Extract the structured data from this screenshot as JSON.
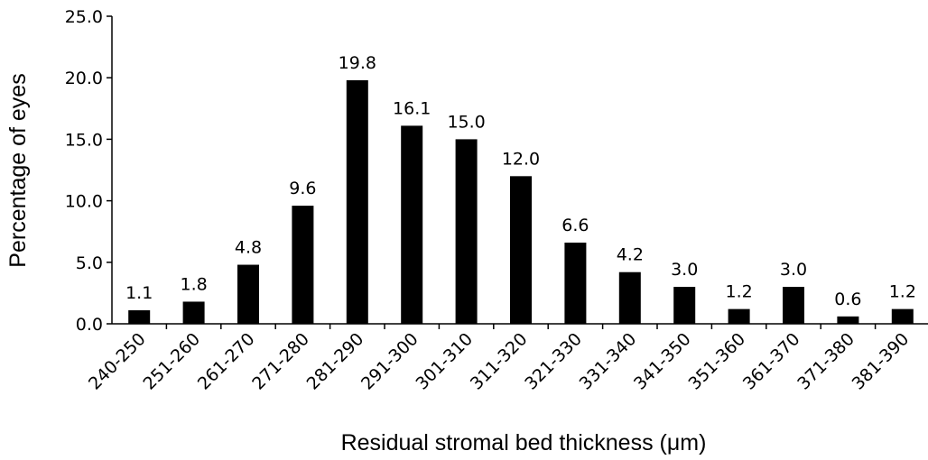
{
  "chart_data": {
    "type": "bar",
    "title": "",
    "xlabel": "Residual stromal bed thickness (μm)",
    "ylabel": "Percentage of eyes",
    "ylim": [
      0,
      25
    ],
    "yticks": [
      "0.0",
      "5.0",
      "10.0",
      "15.0",
      "20.0",
      "25.0"
    ],
    "categories": [
      "240-250",
      "251-260",
      "261-270",
      "271-280",
      "281-290",
      "291-300",
      "301-310",
      "311-320",
      "321-330",
      "331-340",
      "341-350",
      "351-360",
      "361-370",
      "371-380",
      "381-390"
    ],
    "values": [
      1.1,
      1.8,
      4.8,
      9.6,
      19.8,
      16.1,
      15.0,
      12.0,
      6.6,
      4.2,
      3.0,
      1.2,
      3.0,
      0.6,
      1.2
    ],
    "data_labels": [
      "1.1",
      "1.8",
      "4.8",
      "9.6",
      "19.8",
      "16.1",
      "15.0",
      "12.0",
      "6.6",
      "4.2",
      "3.0",
      "1.2",
      "3.0",
      "0.6",
      "1.2"
    ],
    "bar_color": "#000000",
    "grid": false,
    "legend": "none"
  }
}
